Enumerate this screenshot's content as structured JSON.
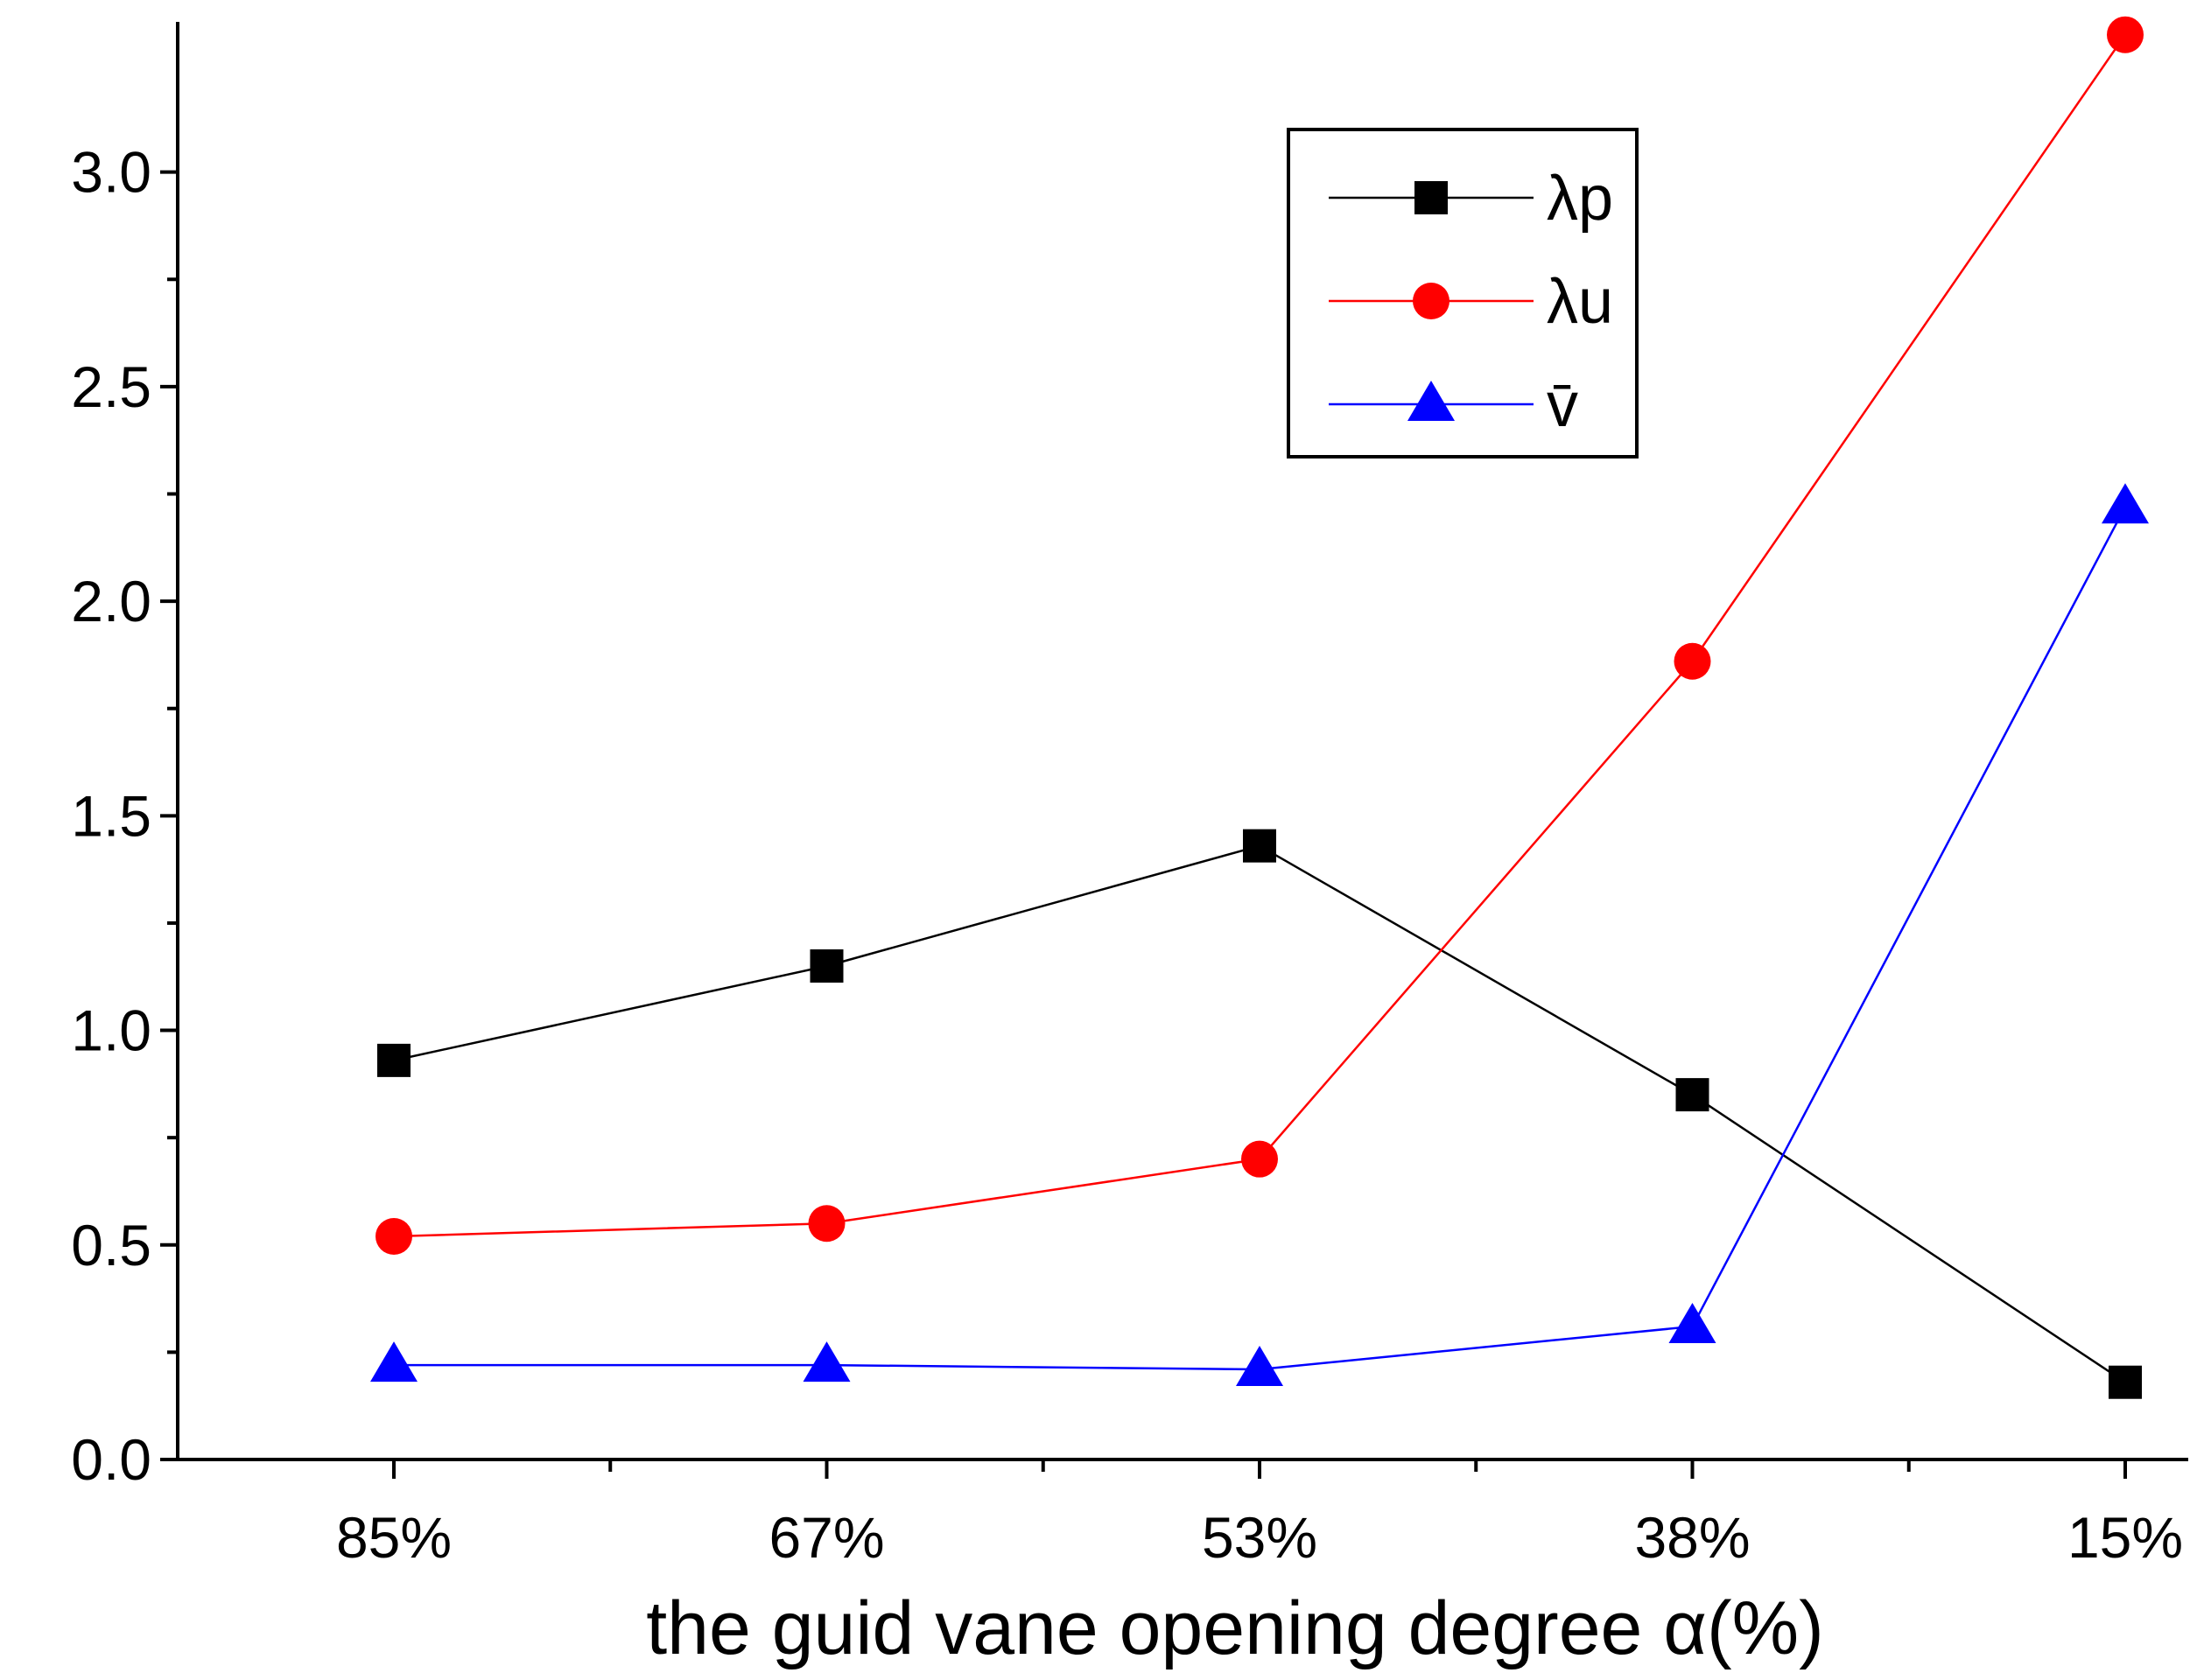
{
  "chart_data": {
    "type": "line",
    "title": "",
    "xlabel": "the guid vane opening degree  α(%)",
    "ylabel": "",
    "categories": [
      "85%",
      "67%",
      "53%",
      "38%",
      "15%"
    ],
    "ylim": [
      0,
      3.35
    ],
    "yticks": [
      "0.0",
      "0.5",
      "1.0",
      "1.5",
      "2.0",
      "2.5",
      "3.0"
    ],
    "legend_position": "top-right",
    "series": [
      {
        "name": "λp",
        "values": [
          0.93,
          1.15,
          1.43,
          0.85,
          0.18
        ],
        "color": "#000000",
        "marker": "square"
      },
      {
        "name": "λu",
        "values": [
          0.52,
          0.55,
          0.7,
          1.86,
          3.32
        ],
        "color": "#ff0000",
        "marker": "circle"
      },
      {
        "name": "v̄",
        "values": [
          0.22,
          0.22,
          0.21,
          0.31,
          2.22
        ],
        "color": "#0000ff",
        "marker": "triangle"
      }
    ]
  }
}
